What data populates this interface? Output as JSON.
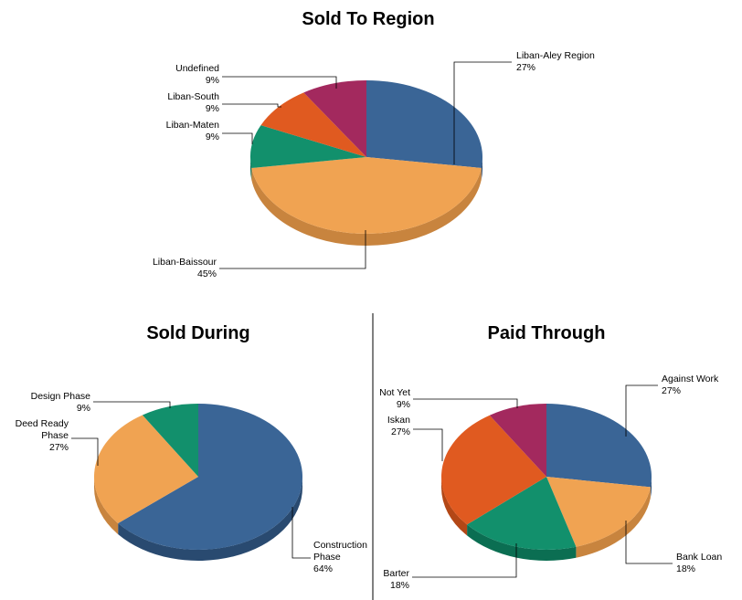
{
  "chart_data": [
    {
      "type": "pie",
      "title": "Sold To Region",
      "slices": [
        {
          "label": "Liban-Aley Region",
          "percent_label": "27%",
          "value": 27,
          "color": "#3a6596",
          "side_color": "#294a70"
        },
        {
          "label": "Liban-Baissour",
          "percent_label": "45%",
          "value": 45,
          "color": "#f0a352",
          "side_color": "#c8843e"
        },
        {
          "label": "Liban-Maten",
          "percent_label": "9%",
          "value": 9,
          "color": "#12906c",
          "side_color": "#0b6e52"
        },
        {
          "label": "Liban-South",
          "percent_label": "9%",
          "value": 9,
          "color": "#e05a20",
          "side_color": "#b34716"
        },
        {
          "label": "Undefined",
          "percent_label": "9%",
          "value": 9,
          "color": "#a3295e",
          "side_color": "#7e1f49"
        }
      ]
    },
    {
      "type": "pie",
      "title": "Sold During",
      "slices": [
        {
          "label": "Construction Phase",
          "label_lines": [
            "Construction",
            "Phase"
          ],
          "percent_label": "64%",
          "value": 64,
          "color": "#3a6596",
          "side_color": "#294a70"
        },
        {
          "label": "Deed Ready Phase",
          "label_lines": [
            "Deed Ready",
            "Phase"
          ],
          "percent_label": "27%",
          "value": 27,
          "color": "#f0a352",
          "side_color": "#c8843e"
        },
        {
          "label": "Design Phase",
          "label_lines": [
            "Design Phase"
          ],
          "percent_label": "9%",
          "value": 9,
          "color": "#12906c",
          "side_color": "#0b6e52"
        }
      ]
    },
    {
      "type": "pie",
      "title": "Paid Through",
      "slices": [
        {
          "label": "Against Work",
          "percent_label": "27%",
          "value": 27,
          "color": "#3a6596",
          "side_color": "#294a70"
        },
        {
          "label": "Bank Loan",
          "percent_label": "18%",
          "value": 18,
          "color": "#f0a352",
          "side_color": "#c8843e"
        },
        {
          "label": "Barter",
          "percent_label": "18%",
          "value": 18,
          "color": "#12906c",
          "side_color": "#0b6e52"
        },
        {
          "label": "Iskan",
          "percent_label": "27%",
          "value": 27,
          "color": "#e05a20",
          "side_color": "#b34716"
        },
        {
          "label": "Not Yet",
          "percent_label": "9%",
          "value": 9,
          "color": "#a3295e",
          "side_color": "#7e1f49"
        }
      ]
    }
  ]
}
